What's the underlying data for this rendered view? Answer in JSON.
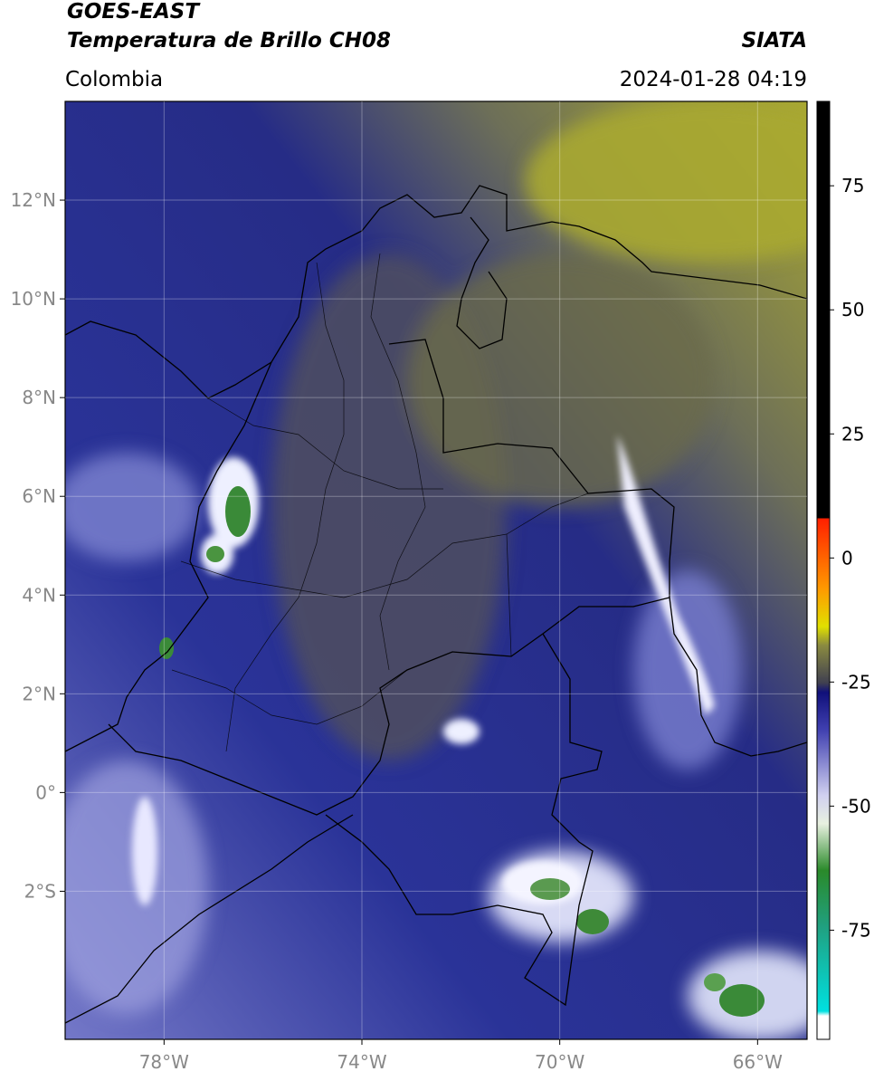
{
  "header": {
    "title": "GOES-EAST",
    "subtitle": "Temperatura de Brillo CH08",
    "region": "Colombia",
    "source": "SIATA",
    "datetime": "2024-01-28 04:19"
  },
  "map": {
    "xlim": [
      -80,
      -65
    ],
    "ylim": [
      -5,
      14
    ],
    "xticks": [
      {
        "value": -78,
        "label": "78°W"
      },
      {
        "value": -74,
        "label": "74°W"
      },
      {
        "value": -70,
        "label": "70°W"
      },
      {
        "value": -66,
        "label": "66°W"
      }
    ],
    "yticks": [
      {
        "value": 12,
        "label": "12°N"
      },
      {
        "value": 10,
        "label": "10°N"
      },
      {
        "value": 8,
        "label": "8°N"
      },
      {
        "value": 6,
        "label": "6°N"
      },
      {
        "value": 4,
        "label": "4°N"
      },
      {
        "value": 2,
        "label": "2°N"
      },
      {
        "value": 0,
        "label": "0°"
      },
      {
        "value": -2,
        "label": "2°S"
      }
    ]
  },
  "colorbar": {
    "lim": [
      -97,
      92
    ],
    "ticks": [
      75,
      50,
      25,
      0,
      -25,
      -50,
      -75
    ]
  }
}
